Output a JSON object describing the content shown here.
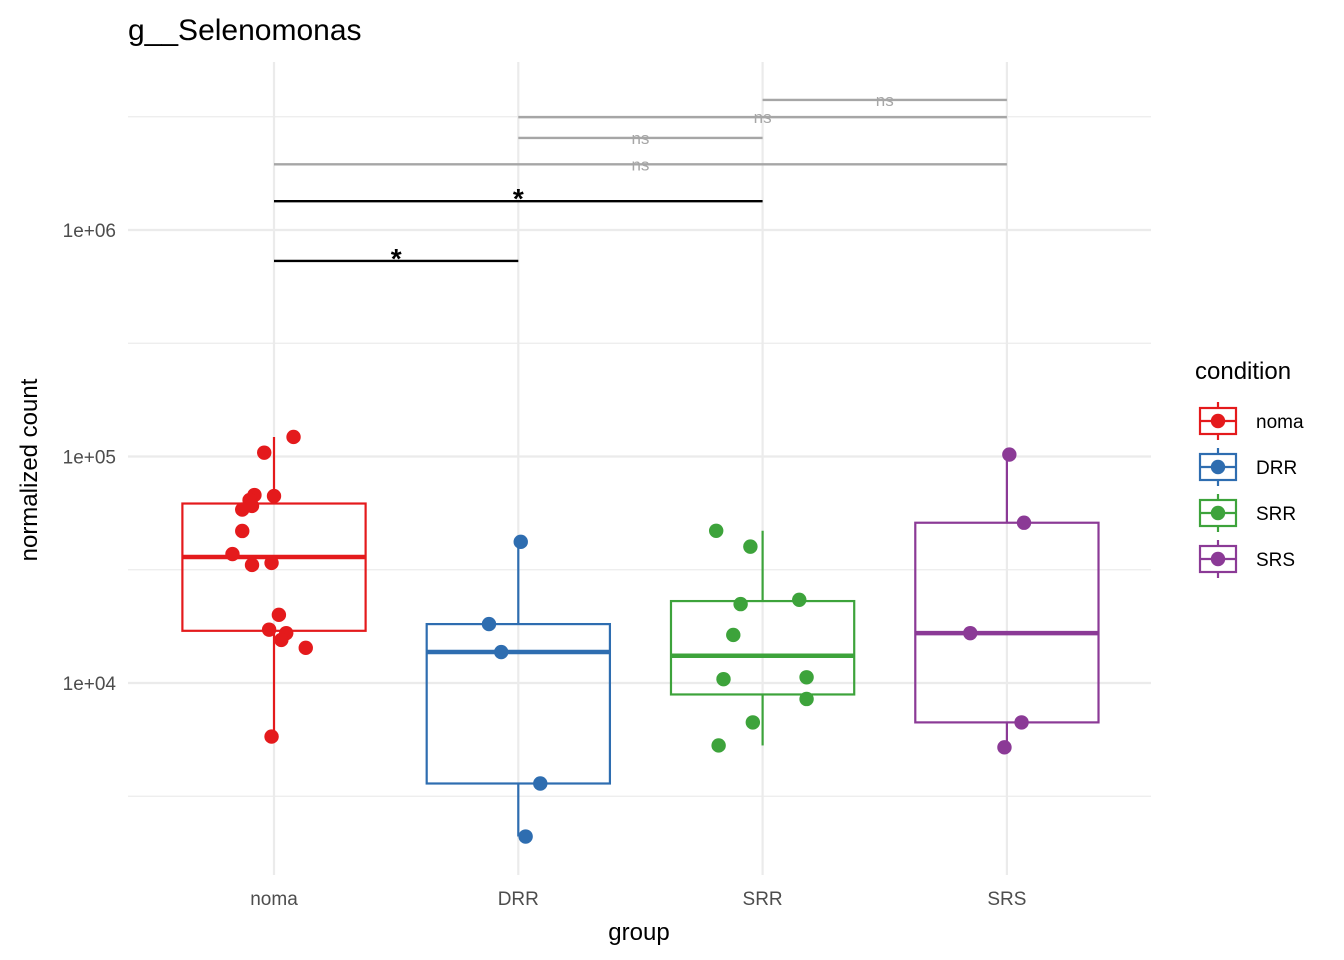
{
  "chart_data": {
    "type": "boxplot",
    "title": "g__Selenomonas",
    "xlabel": "group",
    "ylabel": "normalized count",
    "y_scale": "log10",
    "ylim": [
      1300,
      5000000
    ],
    "y_ticks": [
      {
        "value": 10000,
        "label": "1e+04"
      },
      {
        "value": 100000,
        "label": "1e+05"
      },
      {
        "value": 1000000,
        "label": "1e+06"
      }
    ],
    "grid": true,
    "categories": [
      "noma",
      "DRR",
      "SRR",
      "SRS"
    ],
    "legend": {
      "title": "condition",
      "position": "right",
      "entries": [
        {
          "label": "noma",
          "color": "#E41A1C"
        },
        {
          "label": "DRR",
          "color": "#2E6DB0"
        },
        {
          "label": "SRR",
          "color": "#3DA33B"
        },
        {
          "label": "SRS",
          "color": "#8B3A96"
        }
      ]
    },
    "series": [
      {
        "name": "noma",
        "color": "#E41A1C",
        "box": {
          "q1": 17000,
          "median": 36000,
          "q3": 62000,
          "whisker_low": 5800,
          "whisker_high": 122000
        },
        "points": [
          {
            "y": 122000,
            "jitter": 0.08
          },
          {
            "y": 104000,
            "jitter": -0.04
          },
          {
            "y": 67600,
            "jitter": -0.08
          },
          {
            "y": 66900,
            "jitter": 0.0
          },
          {
            "y": 64200,
            "jitter": -0.1
          },
          {
            "y": 60500,
            "jitter": -0.09
          },
          {
            "y": 58300,
            "jitter": -0.13
          },
          {
            "y": 46900,
            "jitter": -0.13
          },
          {
            "y": 37100,
            "jitter": -0.17
          },
          {
            "y": 33900,
            "jitter": -0.01
          },
          {
            "y": 33200,
            "jitter": -0.09
          },
          {
            "y": 20000,
            "jitter": 0.02
          },
          {
            "y": 17200,
            "jitter": -0.02
          },
          {
            "y": 16600,
            "jitter": 0.05
          },
          {
            "y": 15500,
            "jitter": 0.03
          },
          {
            "y": 14300,
            "jitter": 0.13
          },
          {
            "y": 5800,
            "jitter": -0.01
          }
        ]
      },
      {
        "name": "DRR",
        "color": "#2E6DB0",
        "box": {
          "q1": 3600,
          "median": 13700,
          "q3": 18200,
          "whisker_low": 2100,
          "whisker_high": 42000
        },
        "points": [
          {
            "y": 42000,
            "jitter": 0.01
          },
          {
            "y": 18200,
            "jitter": -0.12
          },
          {
            "y": 13700,
            "jitter": -0.07
          },
          {
            "y": 3600,
            "jitter": 0.09
          },
          {
            "y": 2100,
            "jitter": 0.03
          }
        ]
      },
      {
        "name": "SRR",
        "color": "#3DA33B",
        "box": {
          "q1": 8900,
          "median": 13200,
          "q3": 23000,
          "whisker_low": 5300,
          "whisker_high": 47000
        },
        "points": [
          {
            "y": 47000,
            "jitter": -0.19
          },
          {
            "y": 40000,
            "jitter": -0.05
          },
          {
            "y": 23300,
            "jitter": 0.15
          },
          {
            "y": 22300,
            "jitter": -0.09
          },
          {
            "y": 16300,
            "jitter": -0.12
          },
          {
            "y": 10600,
            "jitter": 0.18
          },
          {
            "y": 10400,
            "jitter": -0.16
          },
          {
            "y": 8500,
            "jitter": 0.18
          },
          {
            "y": 6700,
            "jitter": -0.04
          },
          {
            "y": 5300,
            "jitter": -0.18
          }
        ]
      },
      {
        "name": "SRS",
        "color": "#8B3A96",
        "box": {
          "q1": 6700,
          "median": 16600,
          "q3": 51000,
          "whisker_low": 5200,
          "whisker_high": 102000
        },
        "points": [
          {
            "y": 102000,
            "jitter": 0.01
          },
          {
            "y": 51000,
            "jitter": 0.07
          },
          {
            "y": 16600,
            "jitter": -0.15
          },
          {
            "y": 6700,
            "jitter": 0.06
          },
          {
            "y": 5200,
            "jitter": -0.01
          }
        ]
      }
    ],
    "comparisons": [
      {
        "from": "noma",
        "to": "DRR",
        "y": 730000,
        "label": "*",
        "significant": true
      },
      {
        "from": "noma",
        "to": "SRR",
        "y": 1340000,
        "label": "*",
        "significant": true
      },
      {
        "from": "noma",
        "to": "SRS",
        "y": 1950000,
        "label": "ns",
        "significant": false
      },
      {
        "from": "DRR",
        "to": "SRR",
        "y": 2550000,
        "label": "ns",
        "significant": false
      },
      {
        "from": "DRR",
        "to": "SRS",
        "y": 3150000,
        "label": "ns",
        "significant": false
      },
      {
        "from": "SRR",
        "to": "SRS",
        "y": 3750000,
        "label": "ns",
        "significant": false
      }
    ]
  }
}
